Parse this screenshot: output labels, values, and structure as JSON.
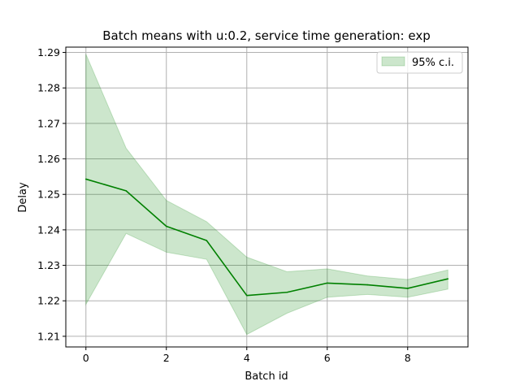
{
  "chart_data": {
    "type": "line",
    "title": "Batch means with u:0.2, service time generation: exp",
    "xlabel": "Batch id",
    "ylabel": "Delay",
    "xlim": [
      -0.5,
      9.5
    ],
    "ylim": [
      1.207,
      1.2915
    ],
    "xticks": [
      0,
      2,
      4,
      6,
      8
    ],
    "yticks": [
      1.21,
      1.22,
      1.23,
      1.24,
      1.25,
      1.26,
      1.27,
      1.28,
      1.29
    ],
    "grid": true,
    "legend_position": "top-right",
    "x": [
      0,
      1,
      2,
      3,
      4,
      5,
      6,
      7,
      8,
      9
    ],
    "series": [
      {
        "values": [
          1.2543,
          1.251,
          1.241,
          1.237,
          1.2215,
          1.2224,
          1.225,
          1.2245,
          1.2235,
          1.2262
        ],
        "color": "#008000"
      }
    ],
    "confidence_band": {
      "name": "95% c.i.",
      "lower": [
        1.219,
        1.239,
        1.2337,
        1.2317,
        1.2105,
        1.2165,
        1.221,
        1.2218,
        1.221,
        1.2233
      ],
      "upper": [
        1.2895,
        1.263,
        1.2483,
        1.2423,
        1.2323,
        1.2282,
        1.229,
        1.227,
        1.226,
        1.2287
      ],
      "color": "#008000"
    }
  }
}
